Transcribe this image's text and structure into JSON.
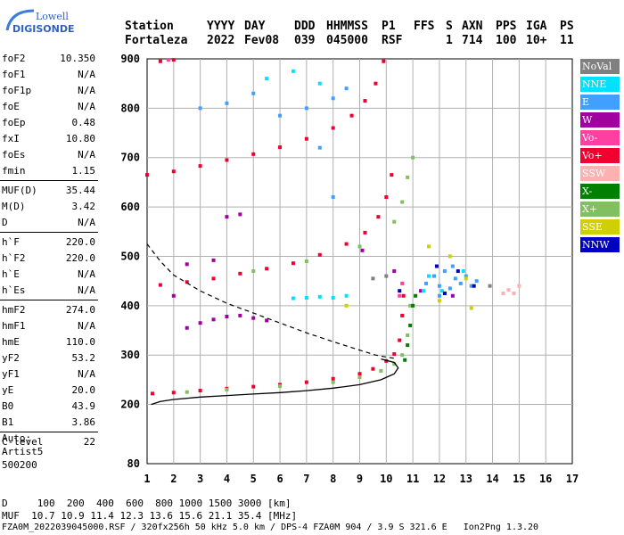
{
  "logo": {
    "line1": "Lowell",
    "line2": "DIGISONDE"
  },
  "header": {
    "labels": [
      "Station",
      "YYYY",
      "DAY",
      "DDD",
      "HHMMSS",
      "P1",
      "FFS",
      "S",
      "AXN",
      "PPS",
      "IGA",
      "PS"
    ],
    "values": [
      "Fortaleza",
      "2022",
      "Fev08",
      "039",
      "045000",
      "RSF",
      "1",
      "714",
      "100",
      "10+",
      "11"
    ]
  },
  "params": [
    [
      {
        "k": "foF2",
        "v": "10.350"
      },
      {
        "k": "foF1",
        "v": "N/A"
      },
      {
        "k": "foF1p",
        "v": "N/A"
      },
      {
        "k": "foE",
        "v": "N/A"
      },
      {
        "k": "foEp",
        "v": "0.48"
      },
      {
        "k": "fxI",
        "v": "10.80"
      },
      {
        "k": "foEs",
        "v": "N/A"
      },
      {
        "k": "fmin",
        "v": "1.15"
      }
    ],
    [
      {
        "k": "MUF(D)",
        "v": "35.44"
      },
      {
        "k": "M(D)",
        "v": "3.42"
      },
      {
        "k": "D",
        "v": "N/A"
      }
    ],
    [
      {
        "k": "h`F",
        "v": "220.0"
      },
      {
        "k": "h`F2",
        "v": "220.0"
      },
      {
        "k": "h`E",
        "v": "N/A"
      },
      {
        "k": "h`Es",
        "v": "N/A"
      }
    ],
    [
      {
        "k": "hmF2",
        "v": "274.0"
      },
      {
        "k": "hmF1",
        "v": "N/A"
      },
      {
        "k": "hmE",
        "v": "110.0"
      },
      {
        "k": "yF2",
        "v": "53.2"
      },
      {
        "k": "yF1",
        "v": "N/A"
      },
      {
        "k": "yE",
        "v": "20.0"
      },
      {
        "k": "B0",
        "v": "43.9"
      },
      {
        "k": "B1",
        "v": "3.86"
      }
    ],
    [
      {
        "k": "C-level",
        "v": "22"
      }
    ]
  ],
  "auto": {
    "line1": "Auto:",
    "line2": "Artist5",
    "line3": "500200"
  },
  "legend": [
    {
      "label": "NoVal",
      "color": "#808080"
    },
    {
      "label": "NNE",
      "color": "#00e0ff"
    },
    {
      "label": "E",
      "color": "#40a0ff"
    },
    {
      "label": "W",
      "color": "#a000a0"
    },
    {
      "label": "Vo-",
      "color": "#ff40a0"
    },
    {
      "label": "Vo+",
      "color": "#f00030"
    },
    {
      "label": "SSW",
      "color": "#ffb0b0"
    },
    {
      "label": "X-",
      "color": "#008000"
    },
    {
      "label": "X+",
      "color": "#80c060"
    },
    {
      "label": "SSE",
      "color": "#d0d000"
    },
    {
      "label": "NNW",
      "color": "#0000c0"
    }
  ],
  "footer": {
    "line1": "D     100  200  400  600  800 1000 1500 3000 [km]",
    "line2": "MUF  10.7 10.9 11.4 12.3 13.6 15.6 21.1 35.4 [MHz]",
    "line3": "FZA0M_2022039045000.RSF / 320fx256h 50 kHz 5.0 km / DPS-4 FZA0M 904 / 3.9 S 321.6 E   Ion2Png 1.3.20"
  },
  "chart_data": {
    "type": "scatter",
    "xlim": [
      1,
      17
    ],
    "ylim": [
      80,
      900
    ],
    "x_ticks": [
      1,
      2,
      3,
      4,
      5,
      6,
      7,
      8,
      9,
      10,
      11,
      12,
      13,
      14,
      15,
      16,
      17
    ],
    "y_ticks": [
      80,
      200,
      300,
      400,
      500,
      600,
      700,
      800,
      900
    ],
    "grid": true,
    "series": [
      {
        "name": "Vo+",
        "color": "#f00030",
        "points": [
          [
            1.2,
            222
          ],
          [
            2,
            224
          ],
          [
            3,
            228
          ],
          [
            4,
            232
          ],
          [
            5,
            236
          ],
          [
            6,
            240
          ],
          [
            7,
            245
          ],
          [
            8,
            252
          ],
          [
            9,
            262
          ],
          [
            9.5,
            272
          ],
          [
            10,
            288
          ],
          [
            10.3,
            302
          ],
          [
            10.5,
            330
          ],
          [
            10.6,
            380
          ],
          [
            10.65,
            420
          ],
          [
            1.5,
            442
          ],
          [
            2.5,
            448
          ],
          [
            3.5,
            455
          ],
          [
            4.5,
            465
          ],
          [
            5.5,
            475
          ],
          [
            6.5,
            486
          ],
          [
            7.5,
            503
          ],
          [
            8.5,
            525
          ],
          [
            9.2,
            548
          ],
          [
            9.7,
            580
          ],
          [
            10,
            620
          ],
          [
            10.2,
            665
          ],
          [
            1,
            665
          ],
          [
            2,
            672
          ],
          [
            3,
            683
          ],
          [
            4,
            695
          ],
          [
            5,
            707
          ],
          [
            6,
            721
          ],
          [
            7,
            738
          ],
          [
            8,
            760
          ],
          [
            8.7,
            785
          ],
          [
            9.2,
            815
          ],
          [
            9.6,
            850
          ],
          [
            9.9,
            895
          ],
          [
            1.5,
            895
          ],
          [
            2,
            898
          ]
        ]
      },
      {
        "name": "X+",
        "color": "#80c060",
        "points": [
          [
            2.5,
            225
          ],
          [
            4,
            230
          ],
          [
            6,
            237
          ],
          [
            8,
            245
          ],
          [
            9,
            255
          ],
          [
            9.8,
            268
          ],
          [
            10.3,
            282
          ],
          [
            10.6,
            300
          ],
          [
            10.8,
            340
          ],
          [
            10.9,
            400
          ],
          [
            5,
            470
          ],
          [
            7,
            490
          ],
          [
            9,
            520
          ],
          [
            10.3,
            570
          ],
          [
            10.6,
            610
          ],
          [
            10.8,
            660
          ],
          [
            11,
            700
          ]
        ]
      },
      {
        "name": "X-",
        "color": "#008000",
        "points": [
          [
            10.7,
            290
          ],
          [
            10.8,
            320
          ],
          [
            10.9,
            360
          ],
          [
            11,
            400
          ],
          [
            11.1,
            420
          ]
        ]
      },
      {
        "name": "W",
        "color": "#a000a0",
        "points": [
          [
            2.5,
            355
          ],
          [
            3,
            365
          ],
          [
            3.5,
            372
          ],
          [
            4,
            378
          ],
          [
            4.5,
            380
          ],
          [
            5,
            375
          ],
          [
            5.5,
            370
          ],
          [
            4,
            580
          ],
          [
            4.5,
            585
          ],
          [
            2,
            420
          ],
          [
            2.5,
            484
          ],
          [
            3.5,
            492
          ],
          [
            9.1,
            512
          ],
          [
            10.3,
            470
          ],
          [
            11.3,
            430
          ],
          [
            12.5,
            420
          ]
        ]
      },
      {
        "name": "E",
        "color": "#40a0ff",
        "points": [
          [
            11.5,
            445
          ],
          [
            11.8,
            460
          ],
          [
            12,
            440
          ],
          [
            12.2,
            470
          ],
          [
            12.4,
            435
          ],
          [
            12.6,
            455
          ],
          [
            12.8,
            445
          ],
          [
            13,
            460
          ],
          [
            13.2,
            440
          ],
          [
            13.4,
            450
          ],
          [
            12,
            420
          ],
          [
            12.5,
            480
          ],
          [
            6,
            785
          ],
          [
            7,
            800
          ],
          [
            8,
            820
          ],
          [
            8.5,
            840
          ],
          [
            5,
            830
          ],
          [
            4,
            810
          ],
          [
            3,
            800
          ],
          [
            7.5,
            720
          ],
          [
            8,
            620
          ]
        ]
      },
      {
        "name": "NNE",
        "color": "#00e0ff",
        "points": [
          [
            6.5,
            415
          ],
          [
            7,
            416
          ],
          [
            7.5,
            418
          ],
          [
            8,
            416
          ],
          [
            8.5,
            420
          ],
          [
            11.4,
            430
          ],
          [
            11.6,
            460
          ],
          [
            12.1,
            430
          ],
          [
            12.9,
            470
          ],
          [
            5.5,
            860
          ],
          [
            6.5,
            875
          ],
          [
            7.5,
            850
          ]
        ]
      },
      {
        "name": "SSE",
        "color": "#d0d000",
        "points": [
          [
            11.6,
            520
          ],
          [
            12.4,
            500
          ],
          [
            13,
            455
          ],
          [
            8.5,
            400
          ],
          [
            12,
            410
          ],
          [
            13.2,
            395
          ]
        ]
      },
      {
        "name": "NNW",
        "color": "#0000c0",
        "points": [
          [
            10.5,
            430
          ],
          [
            11.9,
            480
          ],
          [
            12.2,
            425
          ],
          [
            12.7,
            470
          ],
          [
            13.3,
            440
          ]
        ]
      },
      {
        "name": "SSW",
        "color": "#ffb0b0",
        "points": [
          [
            14.4,
            425
          ],
          [
            14.6,
            432
          ],
          [
            14.8,
            425
          ],
          [
            15,
            440
          ]
        ]
      },
      {
        "name": "Vo-",
        "color": "#ff40a0",
        "points": [
          [
            1.8,
            898
          ],
          [
            10.5,
            420
          ],
          [
            10.6,
            445
          ]
        ]
      },
      {
        "name": "NoVal",
        "color": "#808080",
        "points": [
          [
            9.5,
            455
          ],
          [
            10,
            460
          ],
          [
            13.9,
            440
          ]
        ]
      }
    ],
    "profile_solid": [
      [
        1.15,
        200
      ],
      [
        1.5,
        206
      ],
      [
        2,
        210
      ],
      [
        3,
        215
      ],
      [
        4,
        218
      ],
      [
        5,
        221
      ],
      [
        6,
        224
      ],
      [
        7,
        228
      ],
      [
        8,
        233
      ],
      [
        9,
        240
      ],
      [
        9.8,
        250
      ],
      [
        10.3,
        262
      ],
      [
        10.45,
        274
      ],
      [
        10.3,
        285
      ],
      [
        9.8,
        292
      ]
    ],
    "profile_dashed": [
      [
        1,
        525
      ],
      [
        1.5,
        490
      ],
      [
        2,
        462
      ],
      [
        3,
        430
      ],
      [
        4,
        405
      ],
      [
        5,
        385
      ],
      [
        6,
        365
      ],
      [
        7,
        345
      ],
      [
        8,
        327
      ],
      [
        9,
        310
      ],
      [
        9.6,
        300
      ],
      [
        10,
        296
      ],
      [
        10.35,
        293
      ]
    ]
  }
}
